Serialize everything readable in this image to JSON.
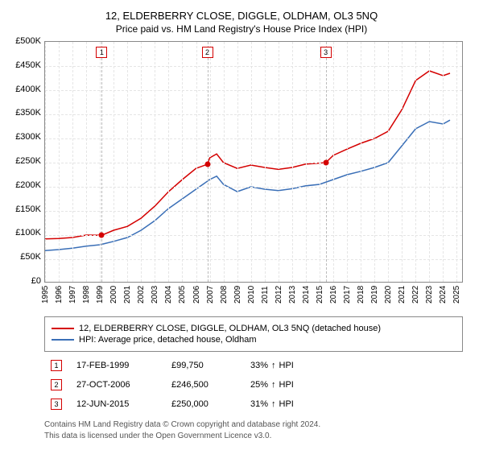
{
  "title": "12, ELDERBERRY CLOSE, DIGGLE, OLDHAM, OL3 5NQ",
  "subtitle": "Price paid vs. HM Land Registry's House Price Index (HPI)",
  "chart": {
    "type": "line",
    "background_color": "#ffffff",
    "grid_color": "#e5e5e5",
    "border_color": "#888888",
    "x": {
      "min": 1995,
      "max": 2025.5,
      "ticks": [
        1995,
        1996,
        1997,
        1998,
        1999,
        2000,
        2001,
        2002,
        2003,
        2004,
        2005,
        2006,
        2007,
        2008,
        2009,
        2010,
        2011,
        2012,
        2013,
        2014,
        2015,
        2016,
        2017,
        2018,
        2019,
        2020,
        2021,
        2022,
        2023,
        2024,
        2025
      ]
    },
    "y": {
      "min": 0,
      "max": 500000,
      "tick_step": 50000,
      "labels": [
        "£500K",
        "£450K",
        "£400K",
        "£350K",
        "£300K",
        "£250K",
        "£200K",
        "£150K",
        "£100K",
        "£50K",
        "£0"
      ]
    },
    "series": [
      {
        "name": "price_paid",
        "color": "#d40000",
        "label": "12, ELDERBERRY CLOSE, DIGGLE, OLDHAM, OL3 5NQ (detached house)",
        "points": [
          [
            1995,
            92000
          ],
          [
            1996,
            93000
          ],
          [
            1997,
            95000
          ],
          [
            1998,
            100000
          ],
          [
            1999.13,
            99750
          ],
          [
            2000,
            110000
          ],
          [
            2001,
            118000
          ],
          [
            2002,
            135000
          ],
          [
            2003,
            160000
          ],
          [
            2004,
            190000
          ],
          [
            2005,
            215000
          ],
          [
            2006,
            238000
          ],
          [
            2006.82,
            246500
          ],
          [
            2007,
            260000
          ],
          [
            2007.5,
            268000
          ],
          [
            2008,
            250000
          ],
          [
            2009,
            238000
          ],
          [
            2010,
            245000
          ],
          [
            2011,
            240000
          ],
          [
            2012,
            236000
          ],
          [
            2013,
            240000
          ],
          [
            2014,
            247000
          ],
          [
            2015.45,
            250000
          ],
          [
            2016,
            265000
          ],
          [
            2017,
            278000
          ],
          [
            2018,
            290000
          ],
          [
            2019,
            300000
          ],
          [
            2020,
            315000
          ],
          [
            2021,
            360000
          ],
          [
            2022,
            420000
          ],
          [
            2023,
            440000
          ],
          [
            2024,
            430000
          ],
          [
            2024.5,
            435000
          ]
        ]
      },
      {
        "name": "hpi",
        "color": "#3a6fb7",
        "label": "HPI: Average price, detached house, Oldham",
        "points": [
          [
            1995,
            68000
          ],
          [
            1996,
            70000
          ],
          [
            1997,
            73000
          ],
          [
            1998,
            77000
          ],
          [
            1999,
            80000
          ],
          [
            2000,
            87000
          ],
          [
            2001,
            95000
          ],
          [
            2002,
            110000
          ],
          [
            2003,
            130000
          ],
          [
            2004,
            155000
          ],
          [
            2005,
            175000
          ],
          [
            2006,
            195000
          ],
          [
            2007,
            215000
          ],
          [
            2007.5,
            222000
          ],
          [
            2008,
            205000
          ],
          [
            2009,
            190000
          ],
          [
            2010,
            200000
          ],
          [
            2011,
            195000
          ],
          [
            2012,
            192000
          ],
          [
            2013,
            196000
          ],
          [
            2014,
            202000
          ],
          [
            2015,
            205000
          ],
          [
            2016,
            215000
          ],
          [
            2017,
            225000
          ],
          [
            2018,
            232000
          ],
          [
            2019,
            240000
          ],
          [
            2020,
            250000
          ],
          [
            2021,
            285000
          ],
          [
            2022,
            320000
          ],
          [
            2023,
            335000
          ],
          [
            2024,
            330000
          ],
          [
            2024.5,
            338000
          ]
        ]
      }
    ],
    "markers": [
      {
        "n": "1",
        "x": 1999.13,
        "y": 99750,
        "color": "#d40000"
      },
      {
        "n": "2",
        "x": 2006.82,
        "y": 246500,
        "color": "#d40000"
      },
      {
        "n": "3",
        "x": 2015.45,
        "y": 250000,
        "color": "#d40000"
      }
    ]
  },
  "sales": [
    {
      "n": "1",
      "color": "#d40000",
      "date": "17-FEB-1999",
      "price": "£99,750",
      "pct": "33%",
      "arrow": "↑",
      "suffix": "HPI"
    },
    {
      "n": "2",
      "color": "#d40000",
      "date": "27-OCT-2006",
      "price": "£246,500",
      "pct": "25%",
      "arrow": "↑",
      "suffix": "HPI"
    },
    {
      "n": "3",
      "color": "#d40000",
      "date": "12-JUN-2015",
      "price": "£250,000",
      "pct": "31%",
      "arrow": "↑",
      "suffix": "HPI"
    }
  ],
  "footnote_l1": "Contains HM Land Registry data © Crown copyright and database right 2024.",
  "footnote_l2": "This data is licensed under the Open Government Licence v3.0."
}
